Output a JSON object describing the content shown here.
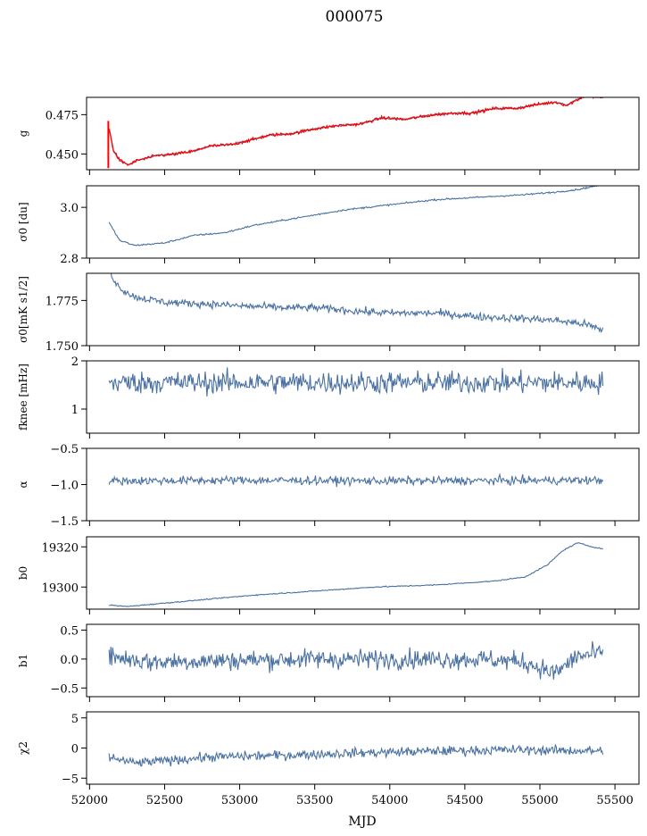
{
  "title": "000075",
  "chart_data": {
    "type": "line",
    "title": "000075",
    "xlabel": "MJD",
    "xlim": [
      51980,
      55660
    ],
    "xticks": [
      52000,
      52500,
      53000,
      53500,
      54000,
      54500,
      55000,
      55500
    ],
    "x_start": 52130,
    "x_end": 55420,
    "panels": [
      {
        "ylabel": "g",
        "ylim": [
          0.44,
          0.486
        ],
        "yticks": [
          0.45,
          0.475
        ],
        "ytick_labels": [
          "0.450",
          "0.475"
        ],
        "series": [
          {
            "color": "#4a71a2",
            "noise": 0.0006,
            "points": [
              [
                52130,
                0.466
              ],
              [
                52160,
                0.452
              ],
              [
                52200,
                0.446
              ],
              [
                52260,
                0.443
              ],
              [
                52320,
                0.446
              ],
              [
                52450,
                0.449
              ],
              [
                52580,
                0.45
              ],
              [
                52700,
                0.452
              ],
              [
                52800,
                0.455
              ],
              [
                52950,
                0.456
              ],
              [
                53080,
                0.459
              ],
              [
                53200,
                0.462
              ],
              [
                53350,
                0.463
              ],
              [
                53500,
                0.466
              ],
              [
                53650,
                0.468
              ],
              [
                53800,
                0.469
              ],
              [
                53950,
                0.473
              ],
              [
                54100,
                0.472
              ],
              [
                54300,
                0.475
              ],
              [
                54420,
                0.476
              ],
              [
                54550,
                0.476
              ],
              [
                54700,
                0.479
              ],
              [
                54850,
                0.479
              ],
              [
                54950,
                0.481
              ],
              [
                55100,
                0.483
              ],
              [
                55180,
                0.481
              ],
              [
                55300,
                0.487
              ],
              [
                55420,
                0.486
              ]
            ]
          },
          {
            "color": "#ff0000",
            "noise": 0.0009,
            "points": [
              [
                52130,
                0.466
              ],
              [
                52160,
                0.452
              ],
              [
                52200,
                0.446
              ],
              [
                52260,
                0.443
              ],
              [
                52320,
                0.446
              ],
              [
                52450,
                0.449
              ],
              [
                52580,
                0.45
              ],
              [
                52700,
                0.452
              ],
              [
                52800,
                0.455
              ],
              [
                52950,
                0.456
              ],
              [
                53080,
                0.459
              ],
              [
                53200,
                0.462
              ],
              [
                53350,
                0.463
              ],
              [
                53500,
                0.466
              ],
              [
                53650,
                0.468
              ],
              [
                53800,
                0.469
              ],
              [
                53950,
                0.473
              ],
              [
                54100,
                0.472
              ],
              [
                54300,
                0.475
              ],
              [
                54420,
                0.476
              ],
              [
                54550,
                0.476
              ],
              [
                54700,
                0.479
              ],
              [
                54850,
                0.479
              ],
              [
                54950,
                0.481
              ],
              [
                55100,
                0.483
              ],
              [
                55180,
                0.481
              ],
              [
                55300,
                0.487
              ],
              [
                55420,
                0.486
              ]
            ],
            "spike": {
              "x": 52125,
              "y_low": 0.441,
              "y_high": 0.471
            }
          }
        ]
      },
      {
        "ylabel": "σ0 [du]",
        "ylim": [
          2.8,
          3.085
        ],
        "yticks": [
          2.8,
          3.0
        ],
        "ytick_labels": [
          "2.8",
          "3.0"
        ],
        "series": [
          {
            "color": "#4a71a2",
            "noise": 0.003,
            "points": [
              [
                52130,
                2.94
              ],
              [
                52200,
                2.87
              ],
              [
                52300,
                2.85
              ],
              [
                52500,
                2.86
              ],
              [
                52700,
                2.89
              ],
              [
                52900,
                2.9
              ],
              [
                53100,
                2.93
              ],
              [
                53400,
                2.96
              ],
              [
                53700,
                2.99
              ],
              [
                54000,
                3.01
              ],
              [
                54300,
                3.03
              ],
              [
                54600,
                3.04
              ],
              [
                54900,
                3.05
              ],
              [
                55100,
                3.06
              ],
              [
                55250,
                3.07
              ],
              [
                55420,
                3.09
              ]
            ]
          }
        ]
      },
      {
        "ylabel": "σ0[mK s1/2]",
        "ylim": [
          1.75,
          1.79
        ],
        "yticks": [
          1.75,
          1.775
        ],
        "ytick_labels": [
          "1.750",
          "1.775"
        ],
        "series": [
          {
            "color": "#4a71a2",
            "noise": 0.002,
            "points": [
              [
                52130,
                1.791
              ],
              [
                52200,
                1.782
              ],
              [
                52300,
                1.777
              ],
              [
                52500,
                1.774
              ],
              [
                52800,
                1.773
              ],
              [
                53000,
                1.772
              ],
              [
                53300,
                1.771
              ],
              [
                53500,
                1.771
              ],
              [
                53800,
                1.769
              ],
              [
                54000,
                1.768
              ],
              [
                54300,
                1.768
              ],
              [
                54600,
                1.766
              ],
              [
                54900,
                1.765
              ],
              [
                55100,
                1.764
              ],
              [
                55300,
                1.762
              ],
              [
                55400,
                1.759
              ]
            ]
          }
        ]
      },
      {
        "ylabel": "fknee [mHz]",
        "ylim": [
          0.5,
          2.0
        ],
        "yticks": [
          1,
          2
        ],
        "ytick_labels": [
          "1",
          "2"
        ],
        "series": [
          {
            "color": "#4a71a2",
            "noise": 0.22,
            "points": [
              [
                52130,
                1.55
              ],
              [
                53000,
                1.55
              ],
              [
                54000,
                1.55
              ],
              [
                55420,
                1.55
              ]
            ]
          }
        ]
      },
      {
        "ylabel": "α",
        "ylim": [
          -1.5,
          -0.5
        ],
        "yticks": [
          -1.5,
          -1.0,
          -0.5
        ],
        "ytick_labels": [
          "−1.5",
          "−1.0",
          "−0.5"
        ],
        "series": [
          {
            "color": "#4a71a2",
            "noise": 0.055,
            "points": [
              [
                52130,
                -0.95
              ],
              [
                53000,
                -0.94
              ],
              [
                54000,
                -0.95
              ],
              [
                55420,
                -0.94
              ]
            ]
          }
        ]
      },
      {
        "ylabel": "b0",
        "ylim": [
          19289,
          19325
        ],
        "yticks": [
          19300,
          19320
        ],
        "ytick_labels": [
          "19300",
          "19320"
        ],
        "series": [
          {
            "color": "#4a71a2",
            "noise": 0.25,
            "points": [
              [
                52130,
                19291
              ],
              [
                52250,
                19290.3
              ],
              [
                52500,
                19292
              ],
              [
                52800,
                19294
              ],
              [
                53100,
                19296
              ],
              [
                53500,
                19298
              ],
              [
                53900,
                19300
              ],
              [
                54300,
                19301
              ],
              [
                54700,
                19303
              ],
              [
                54900,
                19305
              ],
              [
                55050,
                19311
              ],
              [
                55150,
                19318
              ],
              [
                55250,
                19322
              ],
              [
                55350,
                19320
              ],
              [
                55420,
                19319
              ]
            ]
          }
        ]
      },
      {
        "ylabel": "b1",
        "ylim": [
          -0.65,
          0.6
        ],
        "yticks": [
          -0.5,
          0.0,
          0.5
        ],
        "ytick_labels": [
          "−0.5",
          "0.0",
          "0.5"
        ],
        "series": [
          {
            "color": "#4a71a2",
            "noise": 0.16,
            "points": [
              [
                52130,
                0.05
              ],
              [
                52400,
                -0.05
              ],
              [
                53000,
                -0.02
              ],
              [
                53500,
                0.0
              ],
              [
                54000,
                0.0
              ],
              [
                54600,
                0.0
              ],
              [
                54900,
                -0.05
              ],
              [
                55100,
                -0.25
              ],
              [
                55250,
                0.05
              ],
              [
                55420,
                0.1
              ]
            ]
          }
        ]
      },
      {
        "ylabel": "χ2",
        "ylim": [
          -6,
          6
        ],
        "yticks": [
          -5,
          0,
          5
        ],
        "ytick_labels": [
          "−5",
          "0",
          "5"
        ],
        "series": [
          {
            "color": "#4a71a2",
            "noise": 0.75,
            "points": [
              [
                52130,
                -1.5
              ],
              [
                52300,
                -2.5
              ],
              [
                52800,
                -1.5
              ],
              [
                53300,
                -1.2
              ],
              [
                53800,
                -0.8
              ],
              [
                54300,
                -0.5
              ],
              [
                54800,
                -0.3
              ],
              [
                55420,
                -0.5
              ]
            ]
          }
        ]
      }
    ]
  }
}
